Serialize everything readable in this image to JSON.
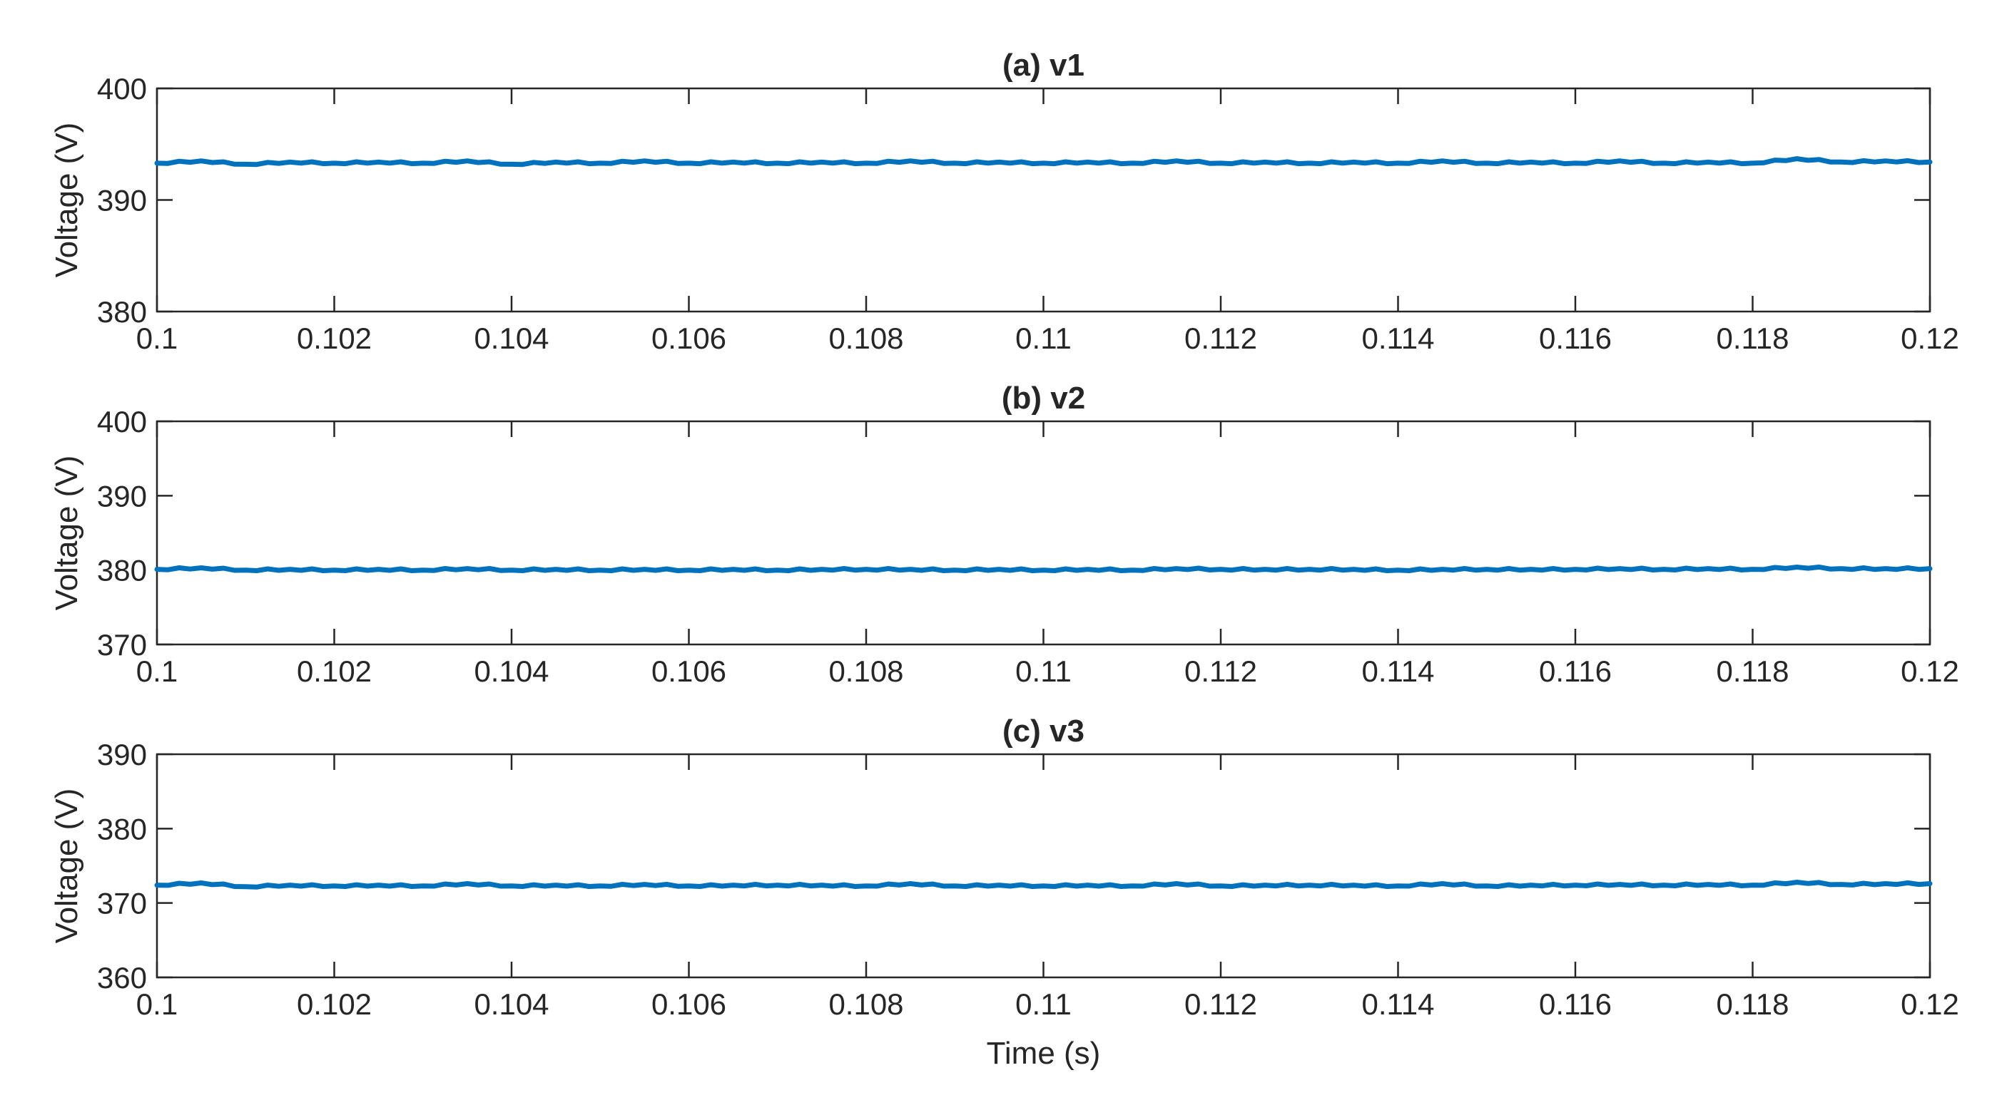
{
  "figure": {
    "xlabel": "Time (s)"
  },
  "colors": {
    "series": "#0072BD",
    "axes": "#262626",
    "background": "#ffffff"
  },
  "chart_data": [
    {
      "type": "line",
      "title": "(a) v1",
      "xlabel": "",
      "ylabel": "Voltage (V)",
      "xlim": [
        0.1,
        0.12
      ],
      "ylim": [
        380,
        400
      ],
      "xticks": [
        0.1,
        0.102,
        0.104,
        0.106,
        0.108,
        0.11,
        0.112,
        0.114,
        0.116,
        0.118,
        0.12
      ],
      "xtick_labels": [
        "0.1",
        "0.102",
        "0.104",
        "0.106",
        "0.108",
        "0.11",
        "0.112",
        "0.114",
        "0.116",
        "0.118",
        "0.12"
      ],
      "yticks": [
        380,
        390,
        400
      ],
      "ytick_labels": [
        "380",
        "390",
        "400"
      ],
      "grid": false,
      "series": [
        {
          "x": [
            0.1,
            0.1005,
            0.101,
            0.1015,
            0.102,
            0.1025,
            0.103,
            0.1035,
            0.104,
            0.1045,
            0.105,
            0.1055,
            0.106,
            0.1065,
            0.107,
            0.1075,
            0.108,
            0.1085,
            0.109,
            0.1095,
            0.11,
            0.1105,
            0.111,
            0.1115,
            0.112,
            0.1125,
            0.113,
            0.1135,
            0.114,
            0.1145,
            0.115,
            0.1155,
            0.116,
            0.1165,
            0.117,
            0.1175,
            0.118,
            0.1185,
            0.119,
            0.1195,
            0.12
          ],
          "y": [
            393.3,
            393.5,
            393.2,
            393.4,
            393.3,
            393.4,
            393.3,
            393.5,
            393.2,
            393.4,
            393.3,
            393.5,
            393.3,
            393.4,
            393.3,
            393.4,
            393.3,
            393.5,
            393.3,
            393.4,
            393.3,
            393.4,
            393.3,
            393.5,
            393.3,
            393.4,
            393.3,
            393.4,
            393.3,
            393.5,
            393.3,
            393.4,
            393.3,
            393.5,
            393.3,
            393.4,
            393.3,
            393.7,
            393.4,
            393.5,
            393.4
          ]
        }
      ]
    },
    {
      "type": "line",
      "title": "(b) v2",
      "xlabel": "",
      "ylabel": "Voltage (V)",
      "xlim": [
        0.1,
        0.12
      ],
      "ylim": [
        370,
        400
      ],
      "xticks": [
        0.1,
        0.102,
        0.104,
        0.106,
        0.108,
        0.11,
        0.112,
        0.114,
        0.116,
        0.118,
        0.12
      ],
      "xtick_labels": [
        "0.1",
        "0.102",
        "0.104",
        "0.106",
        "0.108",
        "0.11",
        "0.112",
        "0.114",
        "0.116",
        "0.118",
        "0.12"
      ],
      "yticks": [
        370,
        380,
        390,
        400
      ],
      "ytick_labels": [
        "370",
        "380",
        "390",
        "400"
      ],
      "grid": false,
      "series": [
        {
          "x": [
            0.1,
            0.1005,
            0.101,
            0.1015,
            0.102,
            0.1025,
            0.103,
            0.1035,
            0.104,
            0.1045,
            0.105,
            0.1055,
            0.106,
            0.1065,
            0.107,
            0.1075,
            0.108,
            0.1085,
            0.109,
            0.1095,
            0.11,
            0.1105,
            0.111,
            0.1115,
            0.112,
            0.1125,
            0.113,
            0.1135,
            0.114,
            0.1145,
            0.115,
            0.1155,
            0.116,
            0.1165,
            0.117,
            0.1175,
            0.118,
            0.1185,
            0.119,
            0.1195,
            0.12
          ],
          "y": [
            380.1,
            380.3,
            380.0,
            380.1,
            380.0,
            380.1,
            380.0,
            380.2,
            380.0,
            380.1,
            380.0,
            380.1,
            380.0,
            380.1,
            380.0,
            380.1,
            380.1,
            380.1,
            380.0,
            380.1,
            380.0,
            380.1,
            380.0,
            380.2,
            380.1,
            380.1,
            380.1,
            380.1,
            380.0,
            380.1,
            380.1,
            380.1,
            380.1,
            380.2,
            380.1,
            380.2,
            380.1,
            380.4,
            380.2,
            380.2,
            380.2
          ]
        }
      ]
    },
    {
      "type": "line",
      "title": "(c) v3",
      "xlabel": "Time (s)",
      "ylabel": "Voltage (V)",
      "xlim": [
        0.1,
        0.12
      ],
      "ylim": [
        360,
        390
      ],
      "xticks": [
        0.1,
        0.102,
        0.104,
        0.106,
        0.108,
        0.11,
        0.112,
        0.114,
        0.116,
        0.118,
        0.12
      ],
      "xtick_labels": [
        "0.1",
        "0.102",
        "0.104",
        "0.106",
        "0.108",
        "0.11",
        "0.112",
        "0.114",
        "0.116",
        "0.118",
        "0.12"
      ],
      "yticks": [
        360,
        370,
        380,
        390
      ],
      "ytick_labels": [
        "360",
        "370",
        "380",
        "390"
      ],
      "grid": false,
      "series": [
        {
          "x": [
            0.1,
            0.1005,
            0.101,
            0.1015,
            0.102,
            0.1025,
            0.103,
            0.1035,
            0.104,
            0.1045,
            0.105,
            0.1055,
            0.106,
            0.1065,
            0.107,
            0.1075,
            0.108,
            0.1085,
            0.109,
            0.1095,
            0.11,
            0.1105,
            0.111,
            0.1115,
            0.112,
            0.1125,
            0.113,
            0.1135,
            0.114,
            0.1145,
            0.115,
            0.1155,
            0.116,
            0.1165,
            0.117,
            0.1175,
            0.118,
            0.1185,
            0.119,
            0.1195,
            0.12
          ],
          "y": [
            372.4,
            372.7,
            372.2,
            372.4,
            372.3,
            372.4,
            372.3,
            372.6,
            372.3,
            372.4,
            372.3,
            372.5,
            372.3,
            372.4,
            372.4,
            372.4,
            372.3,
            372.6,
            372.3,
            372.4,
            372.3,
            372.4,
            372.3,
            372.6,
            372.3,
            372.4,
            372.4,
            372.4,
            372.3,
            372.6,
            372.3,
            372.4,
            372.4,
            372.5,
            372.4,
            372.5,
            372.4,
            372.8,
            372.5,
            372.6,
            372.6
          ]
        }
      ]
    }
  ]
}
